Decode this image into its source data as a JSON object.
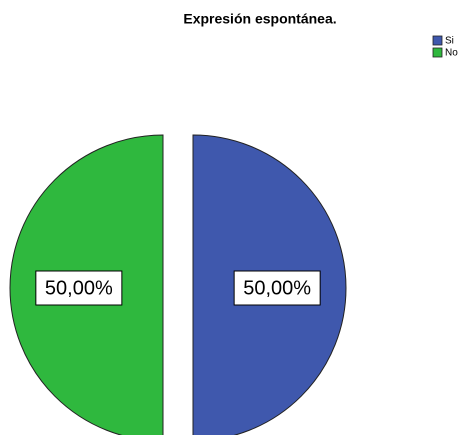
{
  "chart_data": {
    "type": "pie",
    "title": "Expresión espontánea.",
    "categories": [
      "Si",
      "No"
    ],
    "values": [
      50,
      50
    ],
    "value_labels": [
      "50,00%",
      "50,00%"
    ],
    "colors": [
      "#3f58ad",
      "#2fb83e"
    ],
    "legend": "top-right"
  }
}
